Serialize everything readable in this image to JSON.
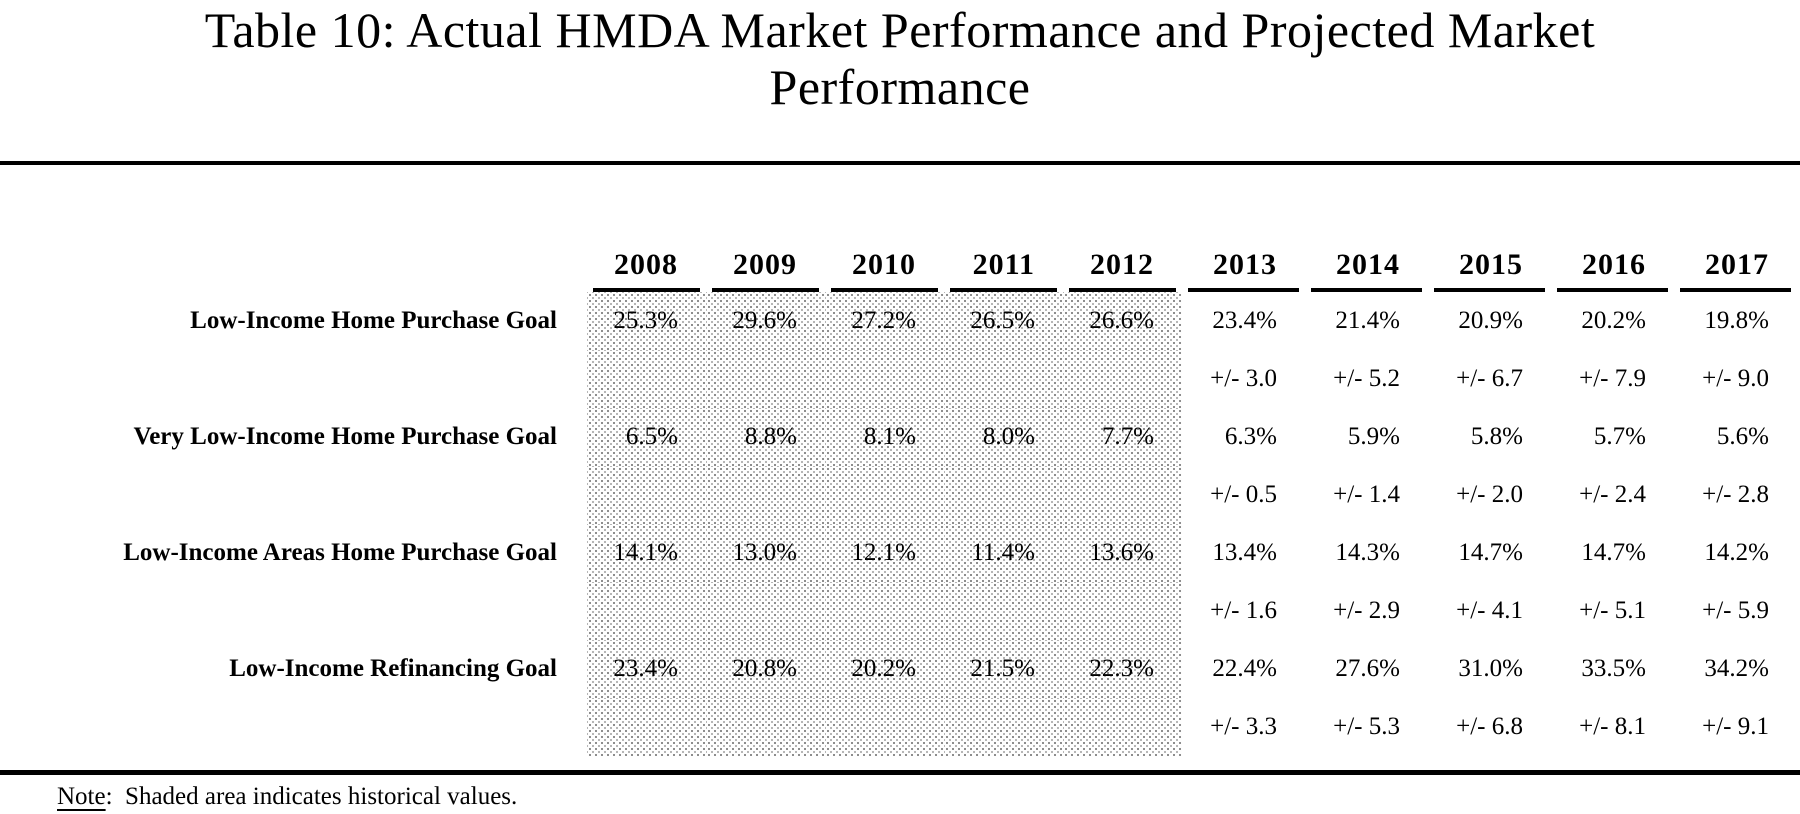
{
  "title": {
    "line1": "Table 10: Actual HMDA Market Performance and Projected Market",
    "line2": "Performance"
  },
  "table": {
    "years": [
      "2008",
      "2009",
      "2010",
      "2011",
      "2012",
      "2013",
      "2014",
      "2015",
      "2016",
      "2017"
    ],
    "historical_year_count": 5,
    "rows": [
      {
        "label": "Low-Income Home Purchase Goal",
        "values": [
          "25.3%",
          "29.6%",
          "27.2%",
          "26.5%",
          "26.6%",
          "23.4%",
          "21.4%",
          "20.9%",
          "20.2%",
          "19.8%"
        ],
        "margins": [
          "",
          "",
          "",
          "",
          "",
          "+/- 3.0",
          "+/- 5.2",
          "+/- 6.7",
          "+/- 7.9",
          "+/- 9.0"
        ]
      },
      {
        "label": "Very Low-Income Home Purchase Goal",
        "values": [
          "6.5%",
          "8.8%",
          "8.1%",
          "8.0%",
          "7.7%",
          "6.3%",
          "5.9%",
          "5.8%",
          "5.7%",
          "5.6%"
        ],
        "margins": [
          "",
          "",
          "",
          "",
          "",
          "+/- 0.5",
          "+/- 1.4",
          "+/- 2.0",
          "+/- 2.4",
          "+/- 2.8"
        ]
      },
      {
        "label": "Low-Income Areas Home Purchase Goal",
        "values": [
          "14.1%",
          "13.0%",
          "12.1%",
          "11.4%",
          "13.6%",
          "13.4%",
          "14.3%",
          "14.7%",
          "14.7%",
          "14.2%"
        ],
        "margins": [
          "",
          "",
          "",
          "",
          "",
          "+/- 1.6",
          "+/- 2.9",
          "+/- 4.1",
          "+/- 5.1",
          "+/- 5.9"
        ]
      },
      {
        "label": "Low-Income Refinancing Goal",
        "values": [
          "23.4%",
          "20.8%",
          "20.2%",
          "21.5%",
          "22.3%",
          "22.4%",
          "27.6%",
          "31.0%",
          "33.5%",
          "34.2%"
        ],
        "margins": [
          "",
          "",
          "",
          "",
          "",
          "+/- 3.3",
          "+/- 5.3",
          "+/- 6.8",
          "+/- 8.1",
          "+/- 9.1"
        ]
      }
    ]
  },
  "note": {
    "word": "Note",
    "rest": ":  Shaded area indicates historical values."
  },
  "colors": {
    "text": "#000000",
    "background": "#ffffff",
    "shade_dots": "#868686"
  }
}
